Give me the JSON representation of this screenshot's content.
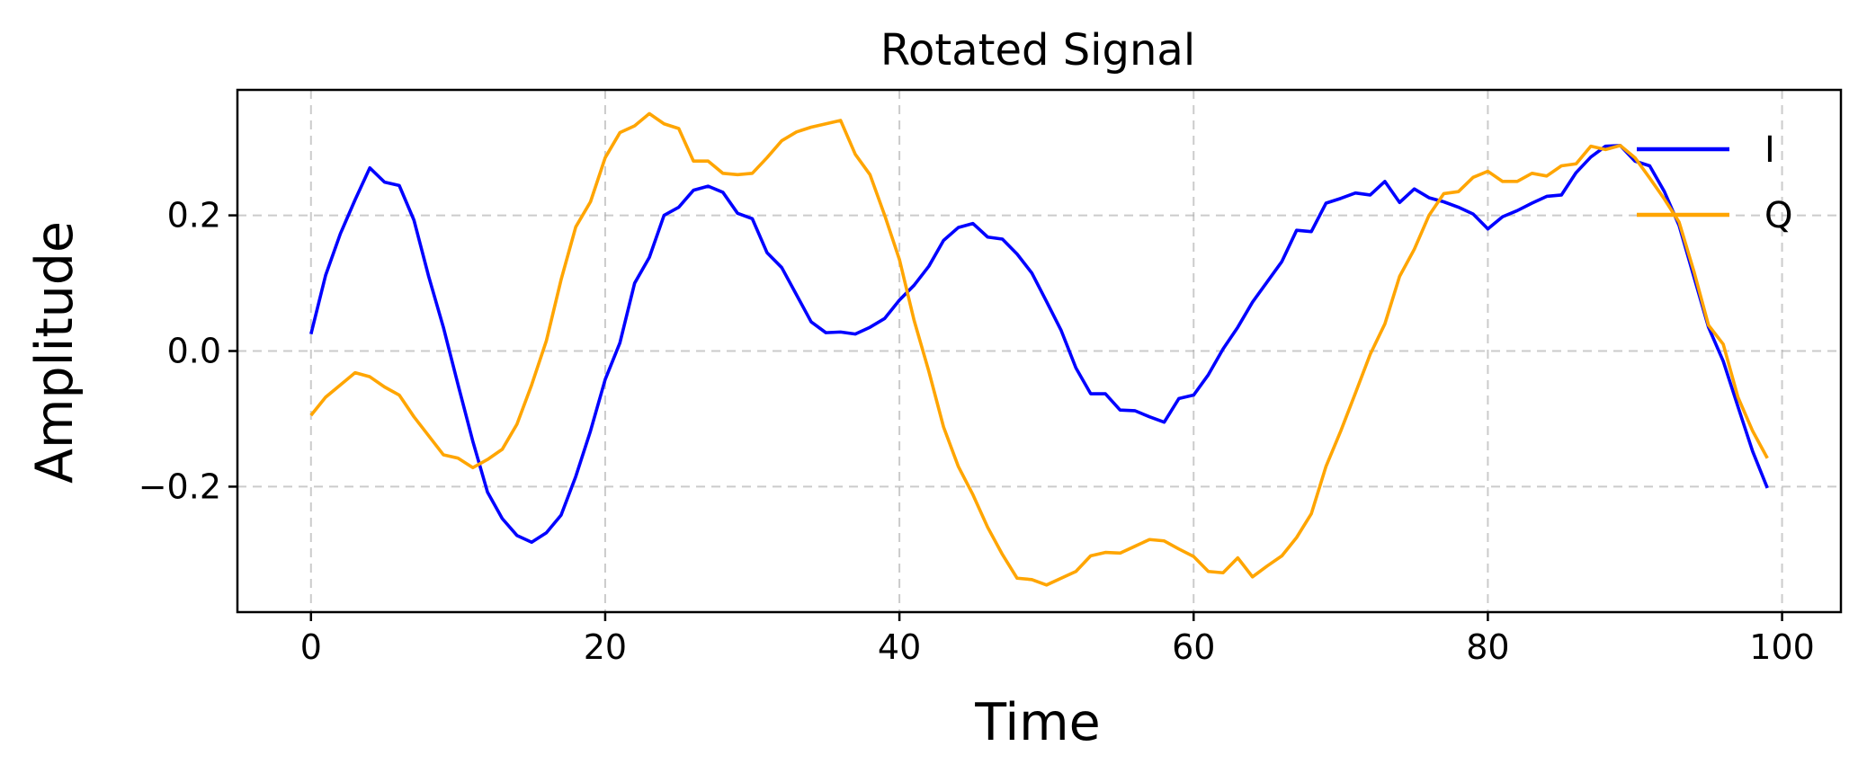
{
  "chart_data": {
    "type": "line",
    "title": "Rotated Signal",
    "xlabel": "Time",
    "ylabel": "Amplitude",
    "xlim": [
      -5,
      104
    ],
    "ylim": [
      -0.385,
      0.385
    ],
    "xticks": [
      0,
      20,
      40,
      60,
      80,
      100
    ],
    "xtick_labels": [
      "0",
      "20",
      "40",
      "60",
      "80",
      "100"
    ],
    "yticks": [
      -0.2,
      0.0,
      0.2
    ],
    "ytick_labels": [
      "−0.2",
      "0.0",
      "0.2"
    ],
    "grid": true,
    "legend_position": "upper right",
    "x": [
      0,
      1,
      2,
      3,
      4,
      5,
      6,
      7,
      8,
      9,
      10,
      11,
      12,
      13,
      14,
      15,
      16,
      17,
      18,
      19,
      20,
      21,
      22,
      23,
      24,
      25,
      26,
      27,
      28,
      29,
      30,
      31,
      32,
      33,
      34,
      35,
      36,
      37,
      38,
      39,
      40,
      41,
      42,
      43,
      44,
      45,
      46,
      47,
      48,
      49,
      50,
      51,
      52,
      53,
      54,
      55,
      56,
      57,
      58,
      59,
      60,
      61,
      62,
      63,
      64,
      65,
      66,
      67,
      68,
      69,
      70,
      71,
      72,
      73,
      74,
      75,
      76,
      77,
      78,
      79,
      80,
      81,
      82,
      83,
      84,
      85,
      86,
      87,
      88,
      89,
      90,
      91,
      92,
      93,
      94,
      95,
      96,
      97,
      98,
      99
    ],
    "series": [
      {
        "name": "I",
        "color": "#0000ff",
        "values": [
          0.025,
          0.112,
          0.173,
          0.223,
          0.27,
          0.249,
          0.244,
          0.193,
          0.11,
          0.035,
          -0.05,
          -0.133,
          -0.208,
          -0.247,
          -0.272,
          -0.282,
          -0.268,
          -0.242,
          -0.185,
          -0.118,
          -0.042,
          0.012,
          0.1,
          0.138,
          0.2,
          0.212,
          0.237,
          0.243,
          0.234,
          0.203,
          0.195,
          0.145,
          0.123,
          0.083,
          0.043,
          0.027,
          0.028,
          0.025,
          0.035,
          0.048,
          0.075,
          0.097,
          0.125,
          0.163,
          0.182,
          0.188,
          0.168,
          0.165,
          0.143,
          0.115,
          0.073,
          0.03,
          -0.025,
          -0.063,
          -0.063,
          -0.087,
          -0.088,
          -0.097,
          -0.105,
          -0.07,
          -0.065,
          -0.035,
          0.003,
          0.035,
          0.072,
          0.102,
          0.132,
          0.178,
          0.176,
          0.218,
          0.225,
          0.233,
          0.23,
          0.25,
          0.219,
          0.239,
          0.226,
          0.22,
          0.212,
          0.202,
          0.18,
          0.198,
          0.207,
          0.218,
          0.228,
          0.23,
          0.263,
          0.286,
          0.302,
          0.303,
          0.28,
          0.273,
          0.235,
          0.185,
          0.11,
          0.035,
          -0.015,
          -0.082,
          -0.148,
          -0.202
        ]
      },
      {
        "name": "Q",
        "color": "#ffa500",
        "values": [
          -0.095,
          -0.068,
          -0.05,
          -0.032,
          -0.038,
          -0.053,
          -0.065,
          -0.097,
          -0.125,
          -0.153,
          -0.158,
          -0.172,
          -0.16,
          -0.145,
          -0.108,
          -0.05,
          0.015,
          0.105,
          0.183,
          0.22,
          0.285,
          0.322,
          0.332,
          0.35,
          0.335,
          0.328,
          0.28,
          0.28,
          0.262,
          0.26,
          0.262,
          0.285,
          0.31,
          0.323,
          0.33,
          0.335,
          0.34,
          0.29,
          0.26,
          0.2,
          0.135,
          0.045,
          -0.03,
          -0.112,
          -0.17,
          -0.212,
          -0.26,
          -0.3,
          -0.335,
          -0.337,
          -0.345,
          -0.335,
          -0.325,
          -0.302,
          -0.297,
          -0.298,
          -0.288,
          -0.278,
          -0.28,
          -0.292,
          -0.303,
          -0.325,
          -0.327,
          -0.305,
          -0.333,
          -0.317,
          -0.302,
          -0.275,
          -0.24,
          -0.17,
          -0.118,
          -0.062,
          -0.005,
          0.04,
          0.11,
          0.15,
          0.2,
          0.232,
          0.235,
          0.256,
          0.265,
          0.25,
          0.25,
          0.262,
          0.258,
          0.273,
          0.276,
          0.302,
          0.297,
          0.303,
          0.285,
          0.255,
          0.224,
          0.19,
          0.118,
          0.038,
          0.01,
          -0.068,
          -0.118,
          -0.158
        ]
      }
    ]
  }
}
